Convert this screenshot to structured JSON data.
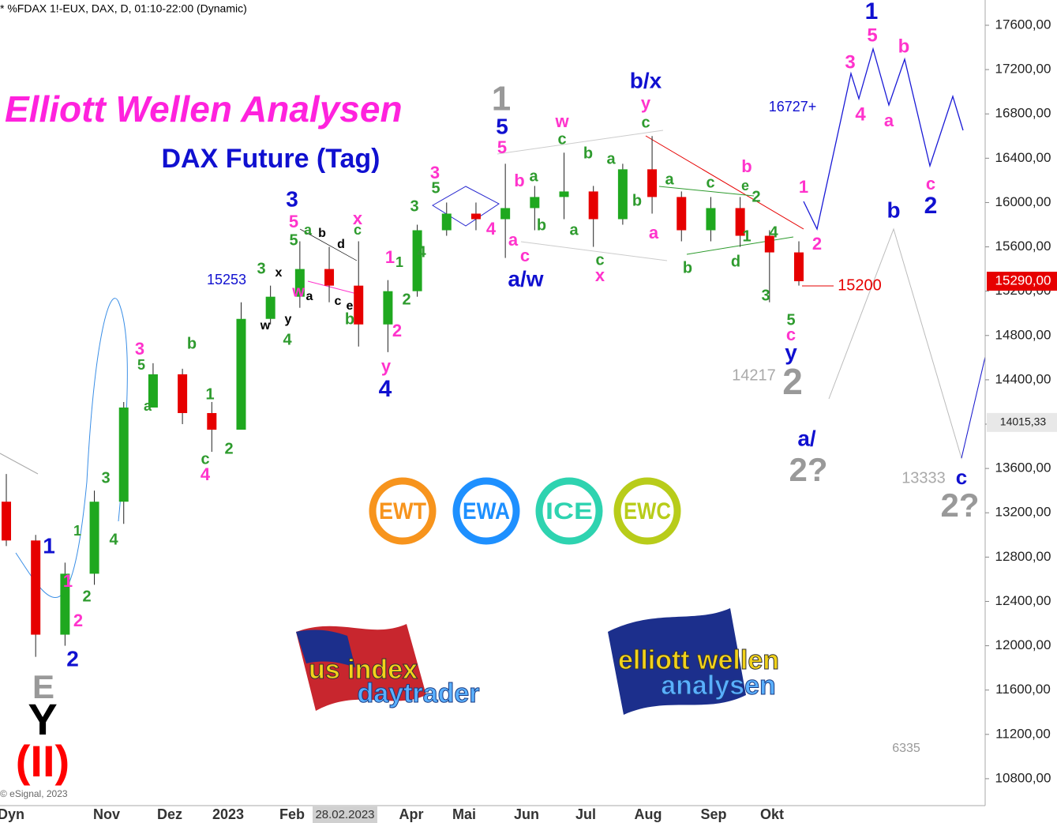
{
  "chart_data": {
    "type": "candlestick",
    "title": "* %FDAX 1!-EUX, DAX, D, 01:10-22:00 (Dynamic)",
    "heading": "Elliott Wellen Analysen",
    "subheading": "DAX Future (Tag)",
    "copyright": "© eSignal, 2023",
    "categories": [
      "Dyn",
      "Nov",
      "Dez",
      "2023",
      "Feb",
      "28.02.2023",
      "Apr",
      "Mai",
      "Jun",
      "Jul",
      "Aug",
      "Sep",
      "Okt"
    ],
    "open": [
      13300,
      12950,
      12100,
      12650,
      13300,
      14150,
      14450,
      14100,
      13950,
      14950,
      15150,
      15400,
      15250,
      14900,
      15200,
      15750,
      15900,
      15850,
      15950,
      16050,
      16100,
      15850,
      16300,
      16050,
      15750,
      15950,
      15700,
      15550
    ],
    "high": [
      13550,
      13000,
      12750,
      13400,
      14200,
      14550,
      14500,
      14200,
      15100,
      15250,
      15650,
      15600,
      15650,
      15300,
      15800,
      16000,
      16000,
      16350,
      16150,
      16450,
      16150,
      16350,
      16600,
      16100,
      16050,
      16050,
      15750,
      15650
    ],
    "low": [
      12900,
      11900,
      12000,
      12550,
      13100,
      14150,
      14000,
      13750,
      13950,
      14900,
      15050,
      15100,
      14700,
      14650,
      15150,
      15700,
      15750,
      15500,
      15750,
      15850,
      15600,
      15800,
      15900,
      15650,
      15650,
      15600,
      15100,
      15250
    ],
    "close": [
      12950,
      12100,
      12650,
      13300,
      14150,
      14450,
      14100,
      13950,
      14950,
      15150,
      15400,
      15250,
      14900,
      15200,
      15750,
      15900,
      15850,
      15950,
      16050,
      16100,
      15850,
      16300,
      16050,
      15750,
      15950,
      15700,
      15550,
      15290
    ],
    "up_color": "#1fa81f",
    "down_color": "#e60000",
    "ylim": [
      10557,
      17828
    ],
    "yticks": [
      {
        "value": 10800,
        "label": "10800,00"
      },
      {
        "value": 11200,
        "label": "11200,00"
      },
      {
        "value": 11600,
        "label": "11600,00"
      },
      {
        "value": 12000,
        "label": "12000,00"
      },
      {
        "value": 12400,
        "label": "12400,00"
      },
      {
        "value": 12800,
        "label": "12800,00"
      },
      {
        "value": 13200,
        "label": "13200,00"
      },
      {
        "value": 13600,
        "label": "13600,00"
      },
      {
        "value": 14000,
        "label": "14000,00"
      },
      {
        "value": 14400,
        "label": "14400,00"
      },
      {
        "value": 14800,
        "label": "14800,00"
      },
      {
        "value": 15200,
        "label": "15200,00"
      },
      {
        "value": 15600,
        "label": "15600,00"
      },
      {
        "value": 16000,
        "label": "16000,00"
      },
      {
        "value": 16400,
        "label": "16400,00"
      },
      {
        "value": 16800,
        "label": "16800,00"
      },
      {
        "value": 17200,
        "label": "17200,00"
      },
      {
        "value": 17600,
        "label": "17600,00"
      }
    ],
    "price_markers": [
      {
        "value": 15290,
        "label": "15290,00",
        "color": "#e60000"
      },
      {
        "value": 14015.33,
        "label": "14015,33",
        "color": "#e8e8e8"
      }
    ],
    "annotations": [
      {
        "text": "1",
        "color": "#1010d0"
      },
      {
        "text": "5",
        "color": "#ff33cc"
      },
      {
        "text": "3",
        "color": "#ff33cc"
      },
      {
        "text": "b",
        "color": "#ff33cc"
      },
      {
        "text": "4",
        "color": "#ff33cc"
      },
      {
        "text": "a",
        "color": "#ff33cc"
      },
      {
        "text": "c",
        "color": "#ff33cc"
      },
      {
        "text": "2",
        "color": "#1010d0"
      },
      {
        "text": "b",
        "color": "#1010d0"
      },
      {
        "text": "1",
        "color": "#ff33cc"
      },
      {
        "text": "2",
        "color": "#ff33cc"
      },
      {
        "text": "16727+",
        "color": "#1010d0"
      },
      {
        "text": "b/x",
        "color": "#1010d0"
      },
      {
        "text": "y",
        "color": "#ff33cc"
      },
      {
        "text": "c",
        "color": "#2e9b2e"
      },
      {
        "text": "w",
        "color": "#ff33cc"
      },
      {
        "text": "c",
        "color": "#2e9b2e"
      },
      {
        "text": "b",
        "color": "#2e9b2e"
      },
      {
        "text": "a",
        "color": "#2e9b2e"
      },
      {
        "text": "b",
        "color": "#2e9b2e"
      },
      {
        "text": "a",
        "color": "#2e9b2e"
      },
      {
        "text": "c",
        "color": "#2e9b2e"
      },
      {
        "text": "x",
        "color": "#ff33cc"
      },
      {
        "text": "a",
        "color": "#ff33cc"
      },
      {
        "text": "a",
        "color": "#2e9b2e"
      },
      {
        "text": "c",
        "color": "#2e9b2e"
      },
      {
        "text": "b",
        "color": "#ff33cc"
      },
      {
        "text": "e",
        "color": "#2e9b2e"
      },
      {
        "text": "2",
        "color": "#2e9b2e"
      },
      {
        "text": "4",
        "color": "#2e9b2e"
      },
      {
        "text": "1",
        "color": "#2e9b2e"
      },
      {
        "text": "d",
        "color": "#2e9b2e"
      },
      {
        "text": "b",
        "color": "#2e9b2e"
      },
      {
        "text": "3",
        "color": "#2e9b2e"
      },
      {
        "text": "5",
        "color": "#2e9b2e"
      },
      {
        "text": "c",
        "color": "#ff33cc"
      },
      {
        "text": "y",
        "color": "#1010d0"
      },
      {
        "text": "2",
        "color": "#999999"
      },
      {
        "text": "14217",
        "color": "#aaaaaa"
      },
      {
        "text": "a/",
        "color": "#1010d0"
      },
      {
        "text": "2?",
        "color": "#999999"
      },
      {
        "text": "13333",
        "color": "#aaaaaa"
      },
      {
        "text": "c",
        "color": "#1010d0"
      },
      {
        "text": "2?",
        "color": "#999999"
      },
      {
        "text": "15200",
        "color": "#e60000"
      },
      {
        "text": "1",
        "color": "#999999"
      },
      {
        "text": "5",
        "color": "#1010d0"
      },
      {
        "text": "5",
        "color": "#ff33cc"
      },
      {
        "text": "b",
        "color": "#ff33cc"
      },
      {
        "text": "a",
        "color": "#2e9b2e"
      },
      {
        "text": "4",
        "color": "#ff33cc"
      },
      {
        "text": "a",
        "color": "#ff33cc"
      },
      {
        "text": "b",
        "color": "#2e9b2e"
      },
      {
        "text": "c",
        "color": "#ff33cc"
      },
      {
        "text": "a/w",
        "color": "#1010d0"
      },
      {
        "text": "3",
        "color": "#ff33cc"
      },
      {
        "text": "5",
        "color": "#2e9b2e"
      },
      {
        "text": "3",
        "color": "#2e9b2e"
      },
      {
        "text": "4",
        "color": "#2e9b2e"
      },
      {
        "text": "1",
        "color": "#ff33cc"
      },
      {
        "text": "1",
        "color": "#2e9b2e"
      },
      {
        "text": "2",
        "color": "#2e9b2e"
      },
      {
        "text": "2",
        "color": "#ff33cc"
      },
      {
        "text": "y",
        "color": "#ff33cc"
      },
      {
        "text": "4",
        "color": "#1010d0"
      },
      {
        "text": "x",
        "color": "#ff33cc"
      },
      {
        "text": "c",
        "color": "#2e9b2e"
      },
      {
        "text": "b",
        "color": "#2e9b2e"
      },
      {
        "text": "3",
        "color": "#1010d0"
      },
      {
        "text": "5",
        "color": "#ff33cc"
      },
      {
        "text": "5",
        "color": "#2e9b2e"
      },
      {
        "text": "a",
        "color": "#2e9b2e"
      },
      {
        "text": "b",
        "color": "#000000"
      },
      {
        "text": "d",
        "color": "#000000"
      },
      {
        "text": "w",
        "color": "#ff33cc"
      },
      {
        "text": "a",
        "color": "#000000"
      },
      {
        "text": "c",
        "color": "#000000"
      },
      {
        "text": "e",
        "color": "#000000"
      },
      {
        "text": "3",
        "color": "#2e9b2e"
      },
      {
        "text": "x",
        "color": "#000000"
      },
      {
        "text": "15253",
        "color": "#1010d0"
      },
      {
        "text": "w",
        "color": "#000000"
      },
      {
        "text": "y",
        "color": "#000000"
      },
      {
        "text": "4",
        "color": "#2e9b2e"
      },
      {
        "text": "b",
        "color": "#2e9b2e"
      },
      {
        "text": "3",
        "color": "#ff33cc"
      },
      {
        "text": "5",
        "color": "#2e9b2e"
      },
      {
        "text": "a",
        "color": "#2e9b2e"
      },
      {
        "text": "1",
        "color": "#2e9b2e"
      },
      {
        "text": "c",
        "color": "#2e9b2e"
      },
      {
        "text": "4",
        "color": "#ff33cc"
      },
      {
        "text": "2",
        "color": "#2e9b2e"
      },
      {
        "text": "3",
        "color": "#2e9b2e"
      },
      {
        "text": "4",
        "color": "#2e9b2e"
      },
      {
        "text": "1",
        "color": "#2e9b2e"
      },
      {
        "text": "1",
        "color": "#1010d0"
      },
      {
        "text": "1",
        "color": "#ff33cc"
      },
      {
        "text": "2",
        "color": "#2e9b2e"
      },
      {
        "text": "2",
        "color": "#ff33cc"
      },
      {
        "text": "2",
        "color": "#1010d0"
      },
      {
        "text": "E",
        "color": "#999999"
      },
      {
        "text": "Y",
        "color": "#000000"
      },
      {
        "text": "(II)",
        "color": "#ff0000"
      },
      {
        "text": "6335",
        "color": "#999999"
      }
    ],
    "badges": [
      {
        "text": "EWT",
        "color": "#f7941d"
      },
      {
        "text": "EWA",
        "color": "#1e90ff"
      },
      {
        "text": "ICE",
        "color": "#2ed3b0"
      },
      {
        "text": "EWC",
        "color": "#b8cc1a"
      }
    ],
    "logos": [
      "us index",
      "daytrader",
      "elliott wellen",
      "analysen"
    ]
  }
}
